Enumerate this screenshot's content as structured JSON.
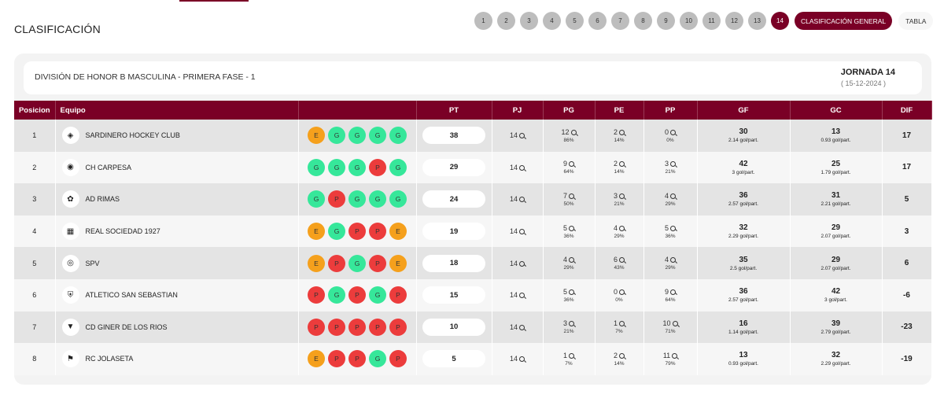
{
  "header": {
    "title": "CLASIFICACIÓN",
    "jornadas": [
      "1",
      "2",
      "3",
      "4",
      "5",
      "6",
      "7",
      "8",
      "9",
      "10",
      "11",
      "12",
      "13",
      "14"
    ],
    "active_jornada": "14",
    "general_label": "CLASIFICACIÓN GENERAL",
    "tabla_label": "TABLA"
  },
  "info": {
    "division": "DIVISIÓN DE HONOR B MASCULINA - PRIMERA FASE - 1",
    "jornada": "JORNADA 14",
    "fecha": "( 15-12-2024 )"
  },
  "colors": {
    "accent": "#7a0026",
    "win": "#36e79a",
    "draw": "#f5a01c",
    "loss": "#ec3c3c"
  },
  "table": {
    "columns": [
      "Posicion",
      "Equipo",
      "",
      "PT",
      "PJ",
      "PG",
      "PE",
      "PP",
      "GF",
      "GC",
      "DIF"
    ],
    "rows": [
      {
        "pos": "1",
        "team": "SARDINERO HOCKEY CLUB",
        "form": [
          "E",
          "G",
          "G",
          "G",
          "G"
        ],
        "pt": "38",
        "pj": "14",
        "pg": "12",
        "pg_pct": "86%",
        "pe": "2",
        "pe_pct": "14%",
        "pp": "0",
        "pp_pct": "0%",
        "gf": "30",
        "gf_avg": "2.14 gol/part.",
        "gc": "13",
        "gc_avg": "0.93 gol/part.",
        "dif": "17"
      },
      {
        "pos": "2",
        "team": "CH CARPESA",
        "form": [
          "G",
          "G",
          "G",
          "P",
          "G"
        ],
        "pt": "29",
        "pj": "14",
        "pg": "9",
        "pg_pct": "64%",
        "pe": "2",
        "pe_pct": "14%",
        "pp": "3",
        "pp_pct": "21%",
        "gf": "42",
        "gf_avg": "3 gol/part.",
        "gc": "25",
        "gc_avg": "1.79 gol/part.",
        "dif": "17"
      },
      {
        "pos": "3",
        "team": "AD RIMAS",
        "form": [
          "G",
          "P",
          "G",
          "G",
          "G"
        ],
        "pt": "24",
        "pj": "14",
        "pg": "7",
        "pg_pct": "50%",
        "pe": "3",
        "pe_pct": "21%",
        "pp": "4",
        "pp_pct": "29%",
        "gf": "36",
        "gf_avg": "2.57 gol/part.",
        "gc": "31",
        "gc_avg": "2.21 gol/part.",
        "dif": "5"
      },
      {
        "pos": "4",
        "team": "REAL SOCIEDAD 1927",
        "form": [
          "E",
          "G",
          "P",
          "P",
          "E"
        ],
        "pt": "19",
        "pj": "14",
        "pg": "5",
        "pg_pct": "36%",
        "pe": "4",
        "pe_pct": "29%",
        "pp": "5",
        "pp_pct": "36%",
        "gf": "32",
        "gf_avg": "2.29 gol/part.",
        "gc": "29",
        "gc_avg": "2.07 gol/part.",
        "dif": "3"
      },
      {
        "pos": "5",
        "team": "SPV",
        "form": [
          "E",
          "P",
          "G",
          "P",
          "E"
        ],
        "pt": "18",
        "pj": "14",
        "pg": "4",
        "pg_pct": "29%",
        "pe": "6",
        "pe_pct": "43%",
        "pp": "4",
        "pp_pct": "29%",
        "gf": "35",
        "gf_avg": "2.5 gol/part.",
        "gc": "29",
        "gc_avg": "2.07 gol/part.",
        "dif": "6"
      },
      {
        "pos": "6",
        "team": "ATLETICO SAN SEBASTIAN",
        "form": [
          "P",
          "G",
          "P",
          "G",
          "P"
        ],
        "pt": "15",
        "pj": "14",
        "pg": "5",
        "pg_pct": "36%",
        "pe": "0",
        "pe_pct": "0%",
        "pp": "9",
        "pp_pct": "64%",
        "gf": "36",
        "gf_avg": "2.57 gol/part.",
        "gc": "42",
        "gc_avg": "3 gol/part.",
        "dif": "-6"
      },
      {
        "pos": "7",
        "team": "CD GINER DE LOS RIOS",
        "form": [
          "P",
          "P",
          "P",
          "P",
          "P"
        ],
        "pt": "10",
        "pj": "14",
        "pg": "3",
        "pg_pct": "21%",
        "pe": "1",
        "pe_pct": "7%",
        "pp": "10",
        "pp_pct": "71%",
        "gf": "16",
        "gf_avg": "1.14 gol/part.",
        "gc": "39",
        "gc_avg": "2.79 gol/part.",
        "dif": "-23"
      },
      {
        "pos": "8",
        "team": "RC JOLASETA",
        "form": [
          "E",
          "P",
          "P",
          "G",
          "P"
        ],
        "pt": "5",
        "pj": "14",
        "pg": "1",
        "pg_pct": "7%",
        "pe": "2",
        "pe_pct": "14%",
        "pp": "11",
        "pp_pct": "79%",
        "gf": "13",
        "gf_avg": "0.93 gol/part.",
        "gc": "32",
        "gc_avg": "2.29 gol/part.",
        "dif": "-19"
      }
    ]
  }
}
